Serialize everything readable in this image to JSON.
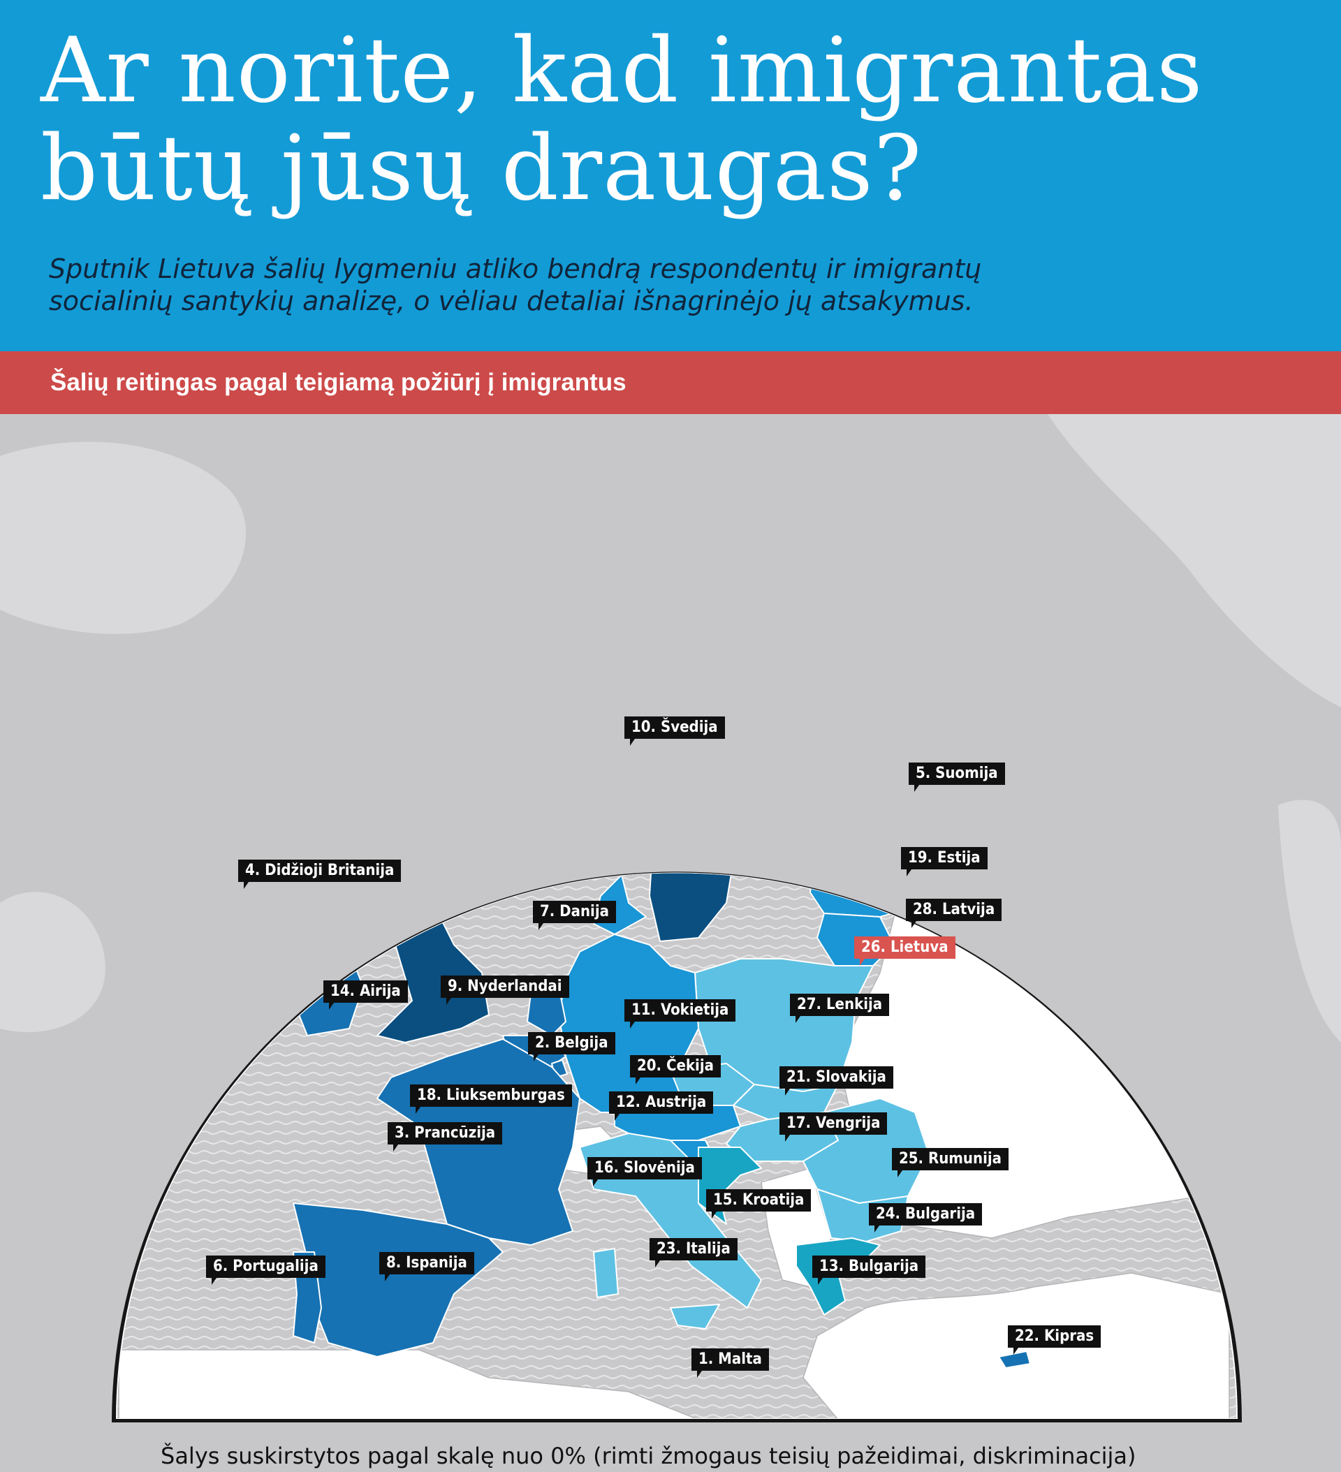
{
  "header": {
    "title": "Ar norite, kad imigrantas būtų jūsų draugas?",
    "subtitle": "Sputnik Lietuva šalių lygmeniu atliko bendrą respondentų ir imigrantų socialinių santykių analizę, o vėliau detaliai išnagrinėjo jų atsakymus."
  },
  "ribbon": {
    "text": "Šalių reitingas pagal teigiamą požiūrį į imigrantus"
  },
  "colors": {
    "header_bg": "#139bd6",
    "ribbon_bg": "#cc4a49",
    "tier_darkest": "#0a4f80",
    "tier_dark": "#1672b3",
    "tier_mid": "#1a95d5",
    "tier_light": "#5dc1e3",
    "tier_teal": "#18a5c4",
    "highlight_label": "#d9534f"
  },
  "countries": [
    {
      "rank": "1. Malta",
      "tier": "tier_light"
    },
    {
      "rank": "2. Belgija",
      "tier": "tier_dark"
    },
    {
      "rank": "3. Prancūzija",
      "tier": "tier_dark"
    },
    {
      "rank": "4. Didžioji Britanija",
      "tier": "tier_darkest"
    },
    {
      "rank": "5. Suomija",
      "tier": "tier_dark"
    },
    {
      "rank": "6. Portugalija",
      "tier": "tier_dark"
    },
    {
      "rank": "7. Danija",
      "tier": "tier_mid"
    },
    {
      "rank": "8. Ispanija",
      "tier": "tier_dark"
    },
    {
      "rank": "9. Nyderlandai",
      "tier": "tier_dark"
    },
    {
      "rank": "10. Švedija",
      "tier": "tier_darkest"
    },
    {
      "rank": "11. Vokietija",
      "tier": "tier_mid"
    },
    {
      "rank": "12. Austrija",
      "tier": "tier_mid"
    },
    {
      "rank": "13. Bulgarija",
      "tier": "tier_teal"
    },
    {
      "rank": "14. Airija",
      "tier": "tier_dark"
    },
    {
      "rank": "15. Kroatija",
      "tier": "tier_teal"
    },
    {
      "rank": "16. Slovėnija",
      "tier": "tier_mid"
    },
    {
      "rank": "17. Vengrija",
      "tier": "tier_light"
    },
    {
      "rank": "18. Liuksemburgas",
      "tier": "tier_dark"
    },
    {
      "rank": "19. Estija",
      "tier": "tier_mid"
    },
    {
      "rank": "20. Čekija",
      "tier": "tier_light"
    },
    {
      "rank": "21. Slovakija",
      "tier": "tier_light"
    },
    {
      "rank": "22. Kipras",
      "tier": "tier_dark"
    },
    {
      "rank": "23. Italija",
      "tier": "tier_light"
    },
    {
      "rank": "24. Bulgarija",
      "tier": "tier_light"
    },
    {
      "rank": "25. Rumunija",
      "tier": "tier_light"
    },
    {
      "rank": "26. Lietuva",
      "tier": "tier_mid"
    },
    {
      "rank": "27. Lenkija",
      "tier": "tier_light"
    },
    {
      "rank": "28. Latvija",
      "tier": "tier_mid"
    }
  ],
  "footer": {
    "note": "Šalys suskirstytos pagal skalę nuo 0% (rimti žmogaus teisių pažeidimai, diskriminacija)"
  }
}
